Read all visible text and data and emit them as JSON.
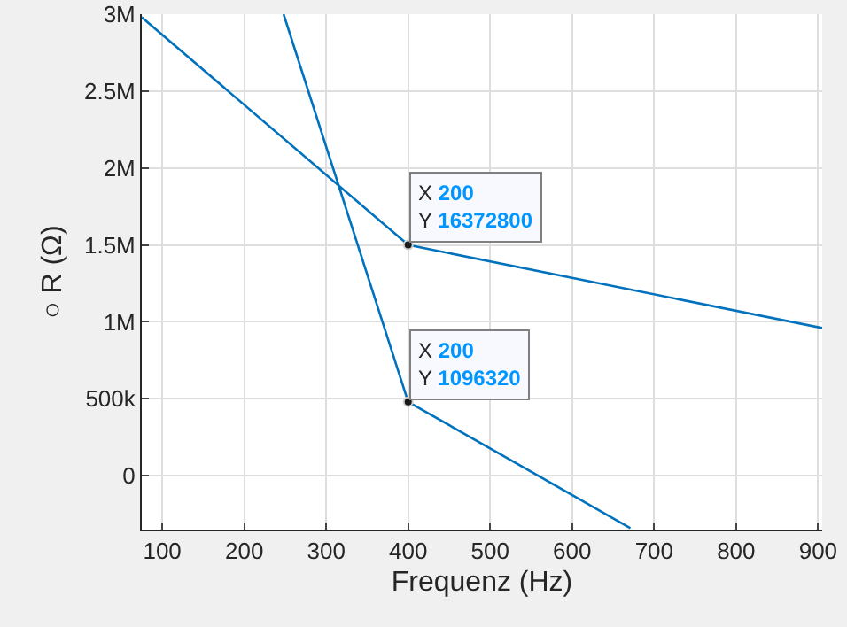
{
  "chart_data": {
    "type": "line",
    "xlabel": "Frequenz (Hz)",
    "ylabel": "○ R (Ω)",
    "series": [
      {
        "color": "#0072bd",
        "x": [
          75,
          400,
          905
        ],
        "values": [
          2980000,
          1500000,
          960000
        ]
      },
      {
        "color": "#0072bd",
        "x": [
          248,
          400,
          671
        ],
        "values": [
          3000000,
          480000,
          -340000
        ]
      }
    ],
    "xlim": [
      75,
      905
    ],
    "xticks": [
      100,
      200,
      300,
      400,
      500,
      600,
      700,
      800,
      900
    ],
    "ylim": [
      -350000,
      3000000
    ],
    "yticks": [
      0,
      {
        "value": 500000,
        "label": "500k"
      },
      {
        "value": 1000000,
        "label": "1M"
      },
      {
        "value": 1500000,
        "label": "1.5M"
      },
      {
        "value": 2000000,
        "label": "2M"
      },
      {
        "value": 2500000,
        "label": "2.5M"
      },
      {
        "value": 3000000,
        "label": "3M"
      }
    ],
    "grid": true,
    "marker": "none",
    "line_style": "solid",
    "annotations": [
      {
        "text": "X 200\nY 16372800",
        "x": 400,
        "y": 1500000
      },
      {
        "text": "X 200\nY 1096320",
        "x": 400,
        "y": 480000
      }
    ]
  }
}
